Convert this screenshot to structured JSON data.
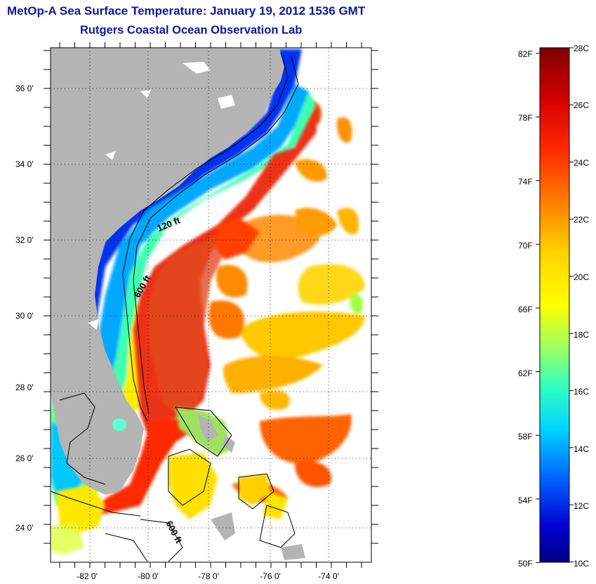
{
  "title": {
    "line1": "MetOp-A Sea Surface Temperature:  January 19, 2012 1536 GMT",
    "line2": "Rutgers Coastal Ocean Observation Lab"
  },
  "map": {
    "lat_labels": [
      "36 0'",
      "34 0'",
      "32 0'",
      "30 0'",
      "28 0'",
      "26 0'",
      "24 0'"
    ],
    "lon_labels": [
      "-82 0'",
      "-80 0'",
      "-78 0'",
      "-76 0'",
      "-74 0'"
    ],
    "contour_labels": [
      "120 ft",
      "600 ft",
      "600 ft"
    ],
    "colors": {
      "land": "#b4b4b4",
      "warm_core": "#ec3214",
      "frame": "#000000"
    }
  },
  "colorbar": {
    "fahrenheit_labels": [
      "82F",
      "78F",
      "74F",
      "70F",
      "66F",
      "62F",
      "58F",
      "54F",
      "50F"
    ],
    "celsius_labels": [
      "28C",
      "26C",
      "24C",
      "22C",
      "20C",
      "18C",
      "16C",
      "14C",
      "12C",
      "10C"
    ],
    "colormap": [
      "#7f0000",
      "#d40000",
      "#ff2a00",
      "#ff7f00",
      "#ffd400",
      "#ffff00",
      "#a0ff60",
      "#30ffc0",
      "#00d4ff",
      "#0060ff",
      "#0000d4",
      "#00007f"
    ]
  }
}
